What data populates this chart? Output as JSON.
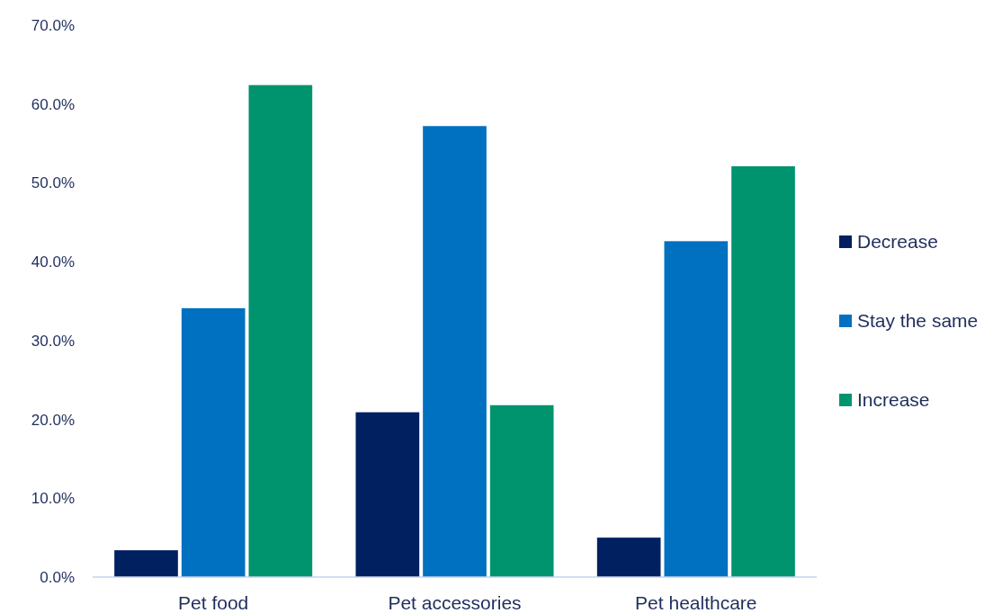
{
  "chart_data": {
    "type": "bar",
    "categories": [
      "Pet food",
      "Pet accessories",
      "Pet healthcare"
    ],
    "series": [
      {
        "name": "Decrease",
        "color": "#002060",
        "values": [
          3.4,
          20.9,
          5.0
        ]
      },
      {
        "name": "Stay the same",
        "color": "#0070c0",
        "values": [
          34.1,
          57.2,
          42.6
        ]
      },
      {
        "name": "Increase",
        "color": "#00946e",
        "values": [
          62.4,
          21.8,
          52.1
        ]
      }
    ],
    "ylim": [
      0,
      70
    ],
    "yticks": [
      {
        "value": 0,
        "label": "0.0%"
      },
      {
        "value": 10,
        "label": "10.0%"
      },
      {
        "value": 20,
        "label": "20.0%"
      },
      {
        "value": 30,
        "label": "30.0%"
      },
      {
        "value": 40,
        "label": "40.0%"
      },
      {
        "value": 50,
        "label": "50.0%"
      },
      {
        "value": 60,
        "label": "60.0%"
      },
      {
        "value": 70,
        "label": "70.0%"
      }
    ],
    "grid": false,
    "legend": "right"
  }
}
